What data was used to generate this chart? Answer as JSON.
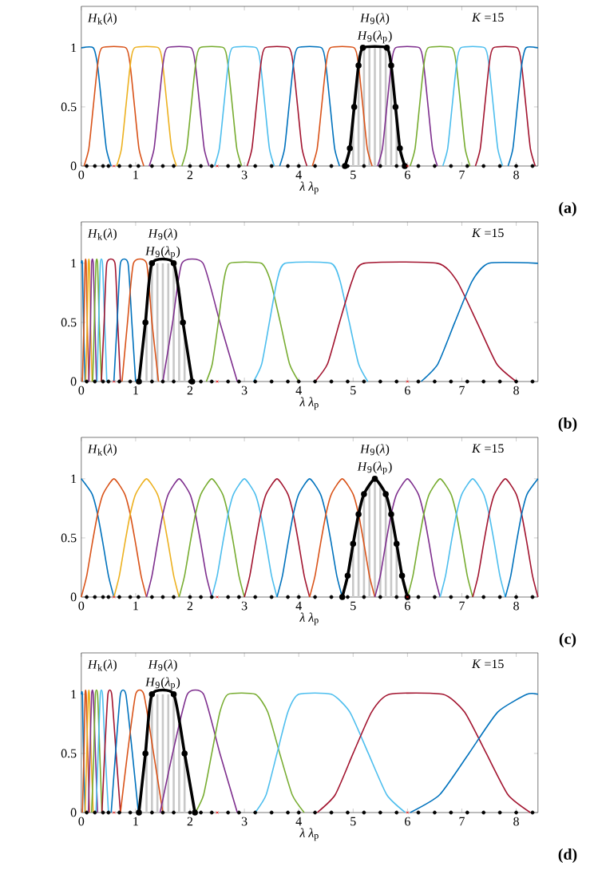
{
  "chart_data": [
    {
      "type": "line",
      "xlabel": "*λ*   *λ*$_{p}$",
      "xlim": [
        0,
        8.4
      ],
      "ylim": [
        0,
        1.35
      ],
      "xticks": [
        0,
        1,
        2,
        3,
        4,
        5,
        6,
        7,
        8
      ],
      "yticks": [
        0,
        0.5,
        1
      ],
      "annotations": [
        "*H*$_{k}$(*λ*)",
        "*H*$_{9}$(*λ*)",
        "*H*$_{9}$(*λ*$_{p}$)",
        "*K* =15",
        "(a)"
      ],
      "series": [
        {
          "type": "bar",
          "color": "#c8c8c8",
          "x": [
            5.0,
            5.1,
            5.2,
            5.3,
            5.4,
            5.5,
            5.6,
            5.7,
            5.8
          ],
          "values": [
            0.4,
            0.85,
            1,
            1,
            1,
            1,
            1,
            0.85,
            0.4
          ]
        },
        {
          "color": "#0072bd",
          "x": [
            0,
            0.22,
            0.3,
            0.38,
            0.46,
            0.55
          ],
          "values": [
            1,
            1,
            0.85,
            0.5,
            0.15,
            0
          ]
        },
        {
          "color": "#d95319",
          "x": [
            0.05,
            0.14,
            0.22,
            0.3,
            0.38,
            0.82,
            0.9,
            0.98,
            1.06,
            1.15
          ],
          "values": [
            0,
            0.15,
            0.5,
            0.85,
            1,
            1,
            0.85,
            0.5,
            0.15,
            0
          ]
        },
        {
          "color": "#edb120",
          "x": [
            0.65,
            0.74,
            0.82,
            0.9,
            0.98,
            1.42,
            1.5,
            1.58,
            1.66,
            1.75
          ],
          "values": [
            0,
            0.15,
            0.5,
            0.85,
            1,
            1,
            0.85,
            0.5,
            0.15,
            0
          ]
        },
        {
          "color": "#7e2f8e",
          "x": [
            1.25,
            1.34,
            1.42,
            1.5,
            1.58,
            2.02,
            2.1,
            2.18,
            2.26,
            2.35
          ],
          "values": [
            0,
            0.15,
            0.5,
            0.85,
            1,
            1,
            0.85,
            0.5,
            0.15,
            0
          ]
        },
        {
          "color": "#77ac30",
          "x": [
            1.85,
            1.94,
            2.02,
            2.1,
            2.18,
            2.62,
            2.7,
            2.78,
            2.86,
            2.95
          ],
          "values": [
            0,
            0.15,
            0.5,
            0.85,
            1,
            1,
            0.85,
            0.5,
            0.15,
            0
          ]
        },
        {
          "color": "#4dbeee",
          "x": [
            2.45,
            2.54,
            2.62,
            2.7,
            2.78,
            3.22,
            3.3,
            3.38,
            3.46,
            3.55
          ],
          "values": [
            0,
            0.15,
            0.5,
            0.85,
            1,
            1,
            0.85,
            0.5,
            0.15,
            0
          ]
        },
        {
          "color": "#a2142f",
          "x": [
            3.05,
            3.14,
            3.22,
            3.3,
            3.38,
            3.82,
            3.9,
            3.98,
            4.06,
            4.15
          ],
          "values": [
            0,
            0.15,
            0.5,
            0.85,
            1,
            1,
            0.85,
            0.5,
            0.15,
            0
          ]
        },
        {
          "color": "#0072bd",
          "x": [
            3.65,
            3.74,
            3.82,
            3.9,
            3.98,
            4.42,
            4.5,
            4.58,
            4.66,
            4.75
          ],
          "values": [
            0,
            0.15,
            0.5,
            0.85,
            1,
            1,
            0.85,
            0.5,
            0.15,
            0
          ]
        },
        {
          "color": "#d95319",
          "x": [
            4.25,
            4.34,
            4.42,
            4.5,
            4.58,
            5.02,
            5.1,
            5.18,
            5.26,
            5.35
          ],
          "values": [
            0,
            0.15,
            0.5,
            0.85,
            1,
            1,
            0.85,
            0.5,
            0.15,
            0
          ]
        },
        {
          "color": "#7e2f8e",
          "x": [
            5.45,
            5.54,
            5.62,
            5.7,
            5.78,
            6.22,
            6.3,
            6.38,
            6.46,
            6.55
          ],
          "values": [
            0,
            0.15,
            0.5,
            0.85,
            1,
            1,
            0.85,
            0.5,
            0.15,
            0
          ]
        },
        {
          "color": "#77ac30",
          "x": [
            6.05,
            6.14,
            6.22,
            6.3,
            6.38,
            6.82,
            6.9,
            6.98,
            7.06,
            7.15
          ],
          "values": [
            0,
            0.15,
            0.5,
            0.85,
            1,
            1,
            0.85,
            0.5,
            0.15,
            0
          ]
        },
        {
          "color": "#4dbeee",
          "x": [
            6.65,
            6.74,
            6.82,
            6.9,
            6.98,
            7.42,
            7.5,
            7.58,
            7.66,
            7.75
          ],
          "values": [
            0,
            0.15,
            0.5,
            0.85,
            1,
            1,
            0.85,
            0.5,
            0.15,
            0
          ]
        },
        {
          "color": "#a2142f",
          "x": [
            7.25,
            7.34,
            7.42,
            7.5,
            7.58,
            8.02,
            8.1,
            8.18,
            8.26,
            8.35
          ],
          "values": [
            0,
            0.15,
            0.5,
            0.85,
            1,
            1,
            0.85,
            0.5,
            0.15,
            0
          ]
        },
        {
          "color": "#0072bd",
          "x": [
            7.85,
            7.94,
            8.02,
            8.1,
            8.18,
            8.4
          ],
          "values": [
            0,
            0.15,
            0.5,
            0.85,
            1,
            1
          ]
        },
        {
          "color": "#000000",
          "marker": "circle",
          "x": [
            4.85,
            4.94,
            5.02,
            5.1,
            5.18,
            5.62,
            5.7,
            5.78,
            5.86,
            5.95
          ],
          "values": [
            0,
            0.15,
            0.5,
            0.85,
            1,
            1,
            0.85,
            0.5,
            0.15,
            0
          ]
        },
        {
          "type": "scatter",
          "color": "#000000",
          "marker": "circle",
          "x": [
            0.1,
            0.25,
            0.4,
            0.5,
            0.7,
            0.9,
            1.05,
            1.3,
            1.5,
            1.7,
            2.0,
            2.2,
            2.4,
            2.7,
            2.9,
            3.2,
            3.5,
            3.8,
            4.0,
            4.3,
            4.6,
            4.9,
            5.2,
            5.5,
            5.8,
            6.2,
            6.5,
            6.8,
            7.1,
            7.4,
            7.7,
            8.0,
            8.3
          ],
          "values": [
            0,
            0,
            0,
            0,
            0,
            0,
            0,
            0,
            0,
            0,
            0,
            0,
            0,
            0,
            0,
            0,
            0,
            0,
            0,
            0,
            0,
            0,
            0,
            0,
            0,
            0,
            0,
            0,
            0,
            0,
            0,
            0,
            0
          ]
        },
        {
          "type": "scatter",
          "color": "#ff0000",
          "marker": "cross",
          "x": [
            0.6,
            2.5,
            6.0
          ],
          "values": [
            0,
            0,
            0
          ]
        }
      ]
    },
    {
      "type": "line",
      "xlabel": "*λ*   *λ*$_{p}$",
      "xlim": [
        0,
        8.4
      ],
      "ylim": [
        0,
        1.35
      ],
      "xticks": [
        0,
        1,
        2,
        3,
        4,
        5,
        6,
        7,
        8
      ],
      "yticks": [
        0,
        0.5,
        1
      ],
      "annotations": [
        "*H*$_{k}$(*λ*)",
        "*H*$_{9}$(*λ*)",
        "*H*$_{9}$(*λ*$_{p}$)",
        "*K* =15",
        "(b)"
      ],
      "series": [
        {
          "type": "bar",
          "color": "#c8c8c8",
          "x": [
            1.2,
            1.3,
            1.4,
            1.5,
            1.6,
            1.7,
            1.8,
            1.9
          ],
          "values": [
            0.6,
            1,
            1,
            1,
            1,
            1,
            0.8,
            0.4
          ]
        },
        {
          "color": "#0072bd",
          "x": [
            0,
            0.02,
            0.04,
            0.07
          ],
          "values": [
            1,
            1,
            0.5,
            0
          ]
        },
        {
          "color": "#d95319",
          "x": [
            0.02,
            0.05,
            0.07,
            0.09,
            0.11,
            0.14
          ],
          "values": [
            0,
            0.5,
            1,
            1,
            0.5,
            0
          ]
        },
        {
          "color": "#edb120",
          "x": [
            0.08,
            0.11,
            0.13,
            0.15,
            0.17,
            0.2
          ],
          "values": [
            0,
            0.5,
            1,
            1,
            0.5,
            0
          ]
        },
        {
          "color": "#7e2f8e",
          "x": [
            0.14,
            0.17,
            0.19,
            0.22,
            0.25,
            0.28
          ],
          "values": [
            0,
            0.5,
            1,
            1,
            0.5,
            0
          ]
        },
        {
          "color": "#77ac30",
          "x": [
            0.21,
            0.24,
            0.27,
            0.3,
            0.33,
            0.37
          ],
          "values": [
            0,
            0.5,
            1,
            1,
            0.5,
            0
          ]
        },
        {
          "color": "#4dbeee",
          "x": [
            0.29,
            0.32,
            0.35,
            0.39,
            0.43,
            0.47
          ],
          "values": [
            0,
            0.5,
            1,
            1,
            0.5,
            0
          ]
        },
        {
          "color": "#a2142f",
          "x": [
            0.37,
            0.42,
            0.47,
            0.62,
            0.67,
            0.72
          ],
          "values": [
            0,
            0.5,
            1,
            1,
            0.5,
            0
          ]
        },
        {
          "color": "#0072bd",
          "x": [
            0.6,
            0.66,
            0.72,
            0.86,
            0.93,
            1.0
          ],
          "values": [
            0,
            0.5,
            1,
            1,
            0.5,
            0
          ]
        },
        {
          "color": "#d95319",
          "x": [
            0.75,
            0.85,
            0.96,
            1.2,
            1.3,
            1.42
          ],
          "values": [
            0,
            0.5,
            1,
            1,
            0.5,
            0
          ]
        },
        {
          "color": "#7e2f8e",
          "x": [
            1.5,
            1.68,
            1.85,
            2.24,
            2.55,
            2.87
          ],
          "values": [
            0,
            0.5,
            1,
            1,
            0.5,
            0
          ]
        },
        {
          "color": "#77ac30",
          "x": [
            2.3,
            2.41,
            2.52,
            2.62,
            2.73,
            3.31,
            3.48,
            3.66,
            3.83,
            4.0
          ],
          "values": [
            0,
            0.15,
            0.5,
            0.85,
            1,
            1,
            0.85,
            0.5,
            0.15,
            0
          ]
        },
        {
          "color": "#4dbeee",
          "x": [
            3.17,
            3.32,
            3.46,
            3.6,
            3.75,
            4.59,
            4.76,
            4.93,
            5.1,
            5.27
          ],
          "values": [
            0,
            0.15,
            0.5,
            0.85,
            1,
            1,
            0.85,
            0.5,
            0.15,
            0
          ]
        },
        {
          "color": "#a2142f",
          "x": [
            4.3,
            4.53,
            4.75,
            4.98,
            5.2,
            6.55,
            6.91,
            7.28,
            7.64,
            8.0
          ],
          "values": [
            0,
            0.15,
            0.5,
            0.85,
            1,
            1,
            0.85,
            0.5,
            0.15,
            0
          ]
        },
        {
          "color": "#0072bd",
          "x": [
            6.25,
            6.56,
            6.87,
            7.19,
            7.5,
            8.4
          ],
          "values": [
            0,
            0.15,
            0.5,
            0.85,
            1,
            1
          ]
        },
        {
          "color": "#000000",
          "marker": "circle",
          "x": [
            1.06,
            1.18,
            1.3,
            1.7,
            1.87,
            2.04
          ],
          "values": [
            0,
            0.5,
            1,
            1,
            0.5,
            0
          ]
        },
        {
          "type": "scatter",
          "color": "#000000",
          "marker": "circle",
          "x": [
            0.1,
            0.25,
            0.4,
            0.5,
            0.7,
            0.9,
            1.3,
            1.5,
            1.7,
            2.0,
            2.2,
            2.4,
            2.7,
            2.9,
            3.2,
            3.5,
            3.8,
            4.0,
            4.3,
            4.6,
            4.9,
            5.2,
            5.5,
            5.8,
            6.2,
            6.5,
            6.8,
            7.1,
            7.4,
            7.7,
            8.0,
            8.3
          ],
          "values": [
            0,
            0,
            0,
            0,
            0,
            0,
            0,
            0,
            0,
            0,
            0,
            0,
            0,
            0,
            0,
            0,
            0,
            0,
            0,
            0,
            0,
            0,
            0,
            0,
            0,
            0,
            0,
            0,
            0,
            0,
            0,
            0
          ]
        },
        {
          "type": "scatter",
          "color": "#ff0000",
          "marker": "cross",
          "x": [
            0.6,
            2.5,
            6.0
          ],
          "values": [
            0,
            0,
            0
          ]
        }
      ]
    },
    {
      "type": "line",
      "xlabel": "*λ*   *λ*$_{p}$",
      "xlim": [
        0,
        8.4
      ],
      "ylim": [
        0,
        1.35
      ],
      "xticks": [
        0,
        1,
        2,
        3,
        4,
        5,
        6,
        7,
        8
      ],
      "yticks": [
        0,
        0.5,
        1
      ],
      "annotations": [
        "*H*$_{k}$(*λ*)",
        "*H*$_{9}$(*λ*)",
        "*H*$_{9}$(*λ*$_{p}$)",
        "*K* =15",
        "(c)"
      ],
      "series": [
        {
          "type": "bar",
          "color": "#c8c8c8",
          "x": [
            5.0,
            5.1,
            5.2,
            5.3,
            5.4,
            5.5,
            5.6,
            5.7,
            5.8
          ],
          "values": [
            0.45,
            0.7,
            0.87,
            0.95,
            1,
            0.95,
            0.87,
            0.7,
            0.45
          ]
        },
        {
          "color": "#0072bd",
          "x": [
            0,
            0.2,
            0.3,
            0.4,
            0.5,
            0.6
          ],
          "values": [
            1,
            0.87,
            0.7,
            0.45,
            0.18,
            0
          ]
        },
        {
          "color": "#d95319",
          "x": [
            0,
            0.1,
            0.2,
            0.3,
            0.4,
            0.6,
            0.8,
            0.9,
            1.0,
            1.1,
            1.2
          ],
          "values": [
            0,
            0.18,
            0.45,
            0.7,
            0.87,
            1,
            0.87,
            0.7,
            0.45,
            0.18,
            0
          ]
        },
        {
          "color": "#edb120",
          "x": [
            0.6,
            0.7,
            0.8,
            0.9,
            1.0,
            1.2,
            1.4,
            1.5,
            1.6,
            1.7,
            1.8
          ],
          "values": [
            0,
            0.18,
            0.45,
            0.7,
            0.87,
            1,
            0.87,
            0.7,
            0.45,
            0.18,
            0
          ]
        },
        {
          "color": "#7e2f8e",
          "x": [
            1.2,
            1.3,
            1.4,
            1.5,
            1.6,
            1.8,
            2.0,
            2.1,
            2.2,
            2.3,
            2.4
          ],
          "values": [
            0,
            0.18,
            0.45,
            0.7,
            0.87,
            1,
            0.87,
            0.7,
            0.45,
            0.18,
            0
          ]
        },
        {
          "color": "#77ac30",
          "x": [
            1.8,
            1.9,
            2.0,
            2.1,
            2.2,
            2.4,
            2.6,
            2.7,
            2.8,
            2.9,
            3.0
          ],
          "values": [
            0,
            0.18,
            0.45,
            0.7,
            0.87,
            1,
            0.87,
            0.7,
            0.45,
            0.18,
            0
          ]
        },
        {
          "color": "#4dbeee",
          "x": [
            2.4,
            2.5,
            2.6,
            2.7,
            2.8,
            3.0,
            3.2,
            3.3,
            3.4,
            3.5,
            3.6
          ],
          "values": [
            0,
            0.18,
            0.45,
            0.7,
            0.87,
            1,
            0.87,
            0.7,
            0.45,
            0.18,
            0
          ]
        },
        {
          "color": "#a2142f",
          "x": [
            3.0,
            3.1,
            3.2,
            3.3,
            3.4,
            3.6,
            3.8,
            3.9,
            4.0,
            4.1,
            4.2
          ],
          "values": [
            0,
            0.18,
            0.45,
            0.7,
            0.87,
            1,
            0.87,
            0.7,
            0.45,
            0.18,
            0
          ]
        },
        {
          "color": "#0072bd",
          "x": [
            3.6,
            3.7,
            3.8,
            3.9,
            4.0,
            4.2,
            4.4,
            4.5,
            4.6,
            4.7,
            4.8
          ],
          "values": [
            0,
            0.18,
            0.45,
            0.7,
            0.87,
            1,
            0.87,
            0.7,
            0.45,
            0.18,
            0
          ]
        },
        {
          "color": "#d95319",
          "x": [
            4.2,
            4.3,
            4.4,
            4.5,
            4.6,
            4.8,
            5.0,
            5.1,
            5.2,
            5.3,
            5.4
          ],
          "values": [
            0,
            0.18,
            0.45,
            0.7,
            0.87,
            1,
            0.87,
            0.7,
            0.45,
            0.18,
            0
          ]
        },
        {
          "color": "#7e2f8e",
          "x": [
            5.4,
            5.5,
            5.6,
            5.7,
            5.8,
            6.0,
            6.2,
            6.3,
            6.4,
            6.5,
            6.6
          ],
          "values": [
            0,
            0.18,
            0.45,
            0.7,
            0.87,
            1,
            0.87,
            0.7,
            0.45,
            0.18,
            0
          ]
        },
        {
          "color": "#77ac30",
          "x": [
            6.0,
            6.1,
            6.2,
            6.3,
            6.4,
            6.6,
            6.8,
            6.9,
            7.0,
            7.1,
            7.2
          ],
          "values": [
            0,
            0.18,
            0.45,
            0.7,
            0.87,
            1,
            0.87,
            0.7,
            0.45,
            0.18,
            0
          ]
        },
        {
          "color": "#4dbeee",
          "x": [
            6.6,
            6.7,
            6.8,
            6.9,
            7.0,
            7.2,
            7.4,
            7.5,
            7.6,
            7.7,
            7.8
          ],
          "values": [
            0,
            0.18,
            0.45,
            0.7,
            0.87,
            1,
            0.87,
            0.7,
            0.45,
            0.18,
            0
          ]
        },
        {
          "color": "#a2142f",
          "x": [
            7.2,
            7.3,
            7.4,
            7.5,
            7.6,
            7.8,
            8.0,
            8.1,
            8.2,
            8.3,
            8.4
          ],
          "values": [
            0,
            0.18,
            0.45,
            0.7,
            0.87,
            1,
            0.87,
            0.7,
            0.45,
            0.18,
            0
          ]
        },
        {
          "color": "#0072bd",
          "x": [
            7.8,
            7.9,
            8.0,
            8.1,
            8.2,
            8.4
          ],
          "values": [
            0,
            0.18,
            0.45,
            0.7,
            0.87,
            1
          ]
        },
        {
          "color": "#000000",
          "marker": "circle",
          "x": [
            4.8,
            4.9,
            5.0,
            5.1,
            5.2,
            5.4,
            5.6,
            5.7,
            5.8,
            5.9,
            6.0
          ],
          "values": [
            0,
            0.18,
            0.45,
            0.7,
            0.87,
            1,
            0.87,
            0.7,
            0.45,
            0.18,
            0
          ]
        },
        {
          "type": "scatter",
          "color": "#000000",
          "marker": "circle",
          "x": [
            0.1,
            0.25,
            0.4,
            0.5,
            0.7,
            0.9,
            1.05,
            1.3,
            1.5,
            1.7,
            2.0,
            2.2,
            2.4,
            2.7,
            2.9,
            3.2,
            3.5,
            3.8,
            4.0,
            4.3,
            4.6,
            4.9,
            5.2,
            5.5,
            5.8,
            6.2,
            6.5,
            6.8,
            7.1,
            7.4,
            7.7,
            8.0,
            8.3
          ],
          "values": [
            0,
            0,
            0,
            0,
            0,
            0,
            0,
            0,
            0,
            0,
            0,
            0,
            0,
            0,
            0,
            0,
            0,
            0,
            0,
            0,
            0,
            0,
            0,
            0,
            0,
            0,
            0,
            0,
            0,
            0,
            0,
            0,
            0
          ]
        },
        {
          "type": "scatter",
          "color": "#ff0000",
          "marker": "cross",
          "x": [
            0.6,
            2.5,
            6.0
          ],
          "values": [
            0,
            0,
            0
          ]
        }
      ]
    },
    {
      "type": "line",
      "xlabel": "*λ*   *λ*$_{p}$",
      "xlim": [
        0,
        8.4
      ],
      "ylim": [
        0,
        1.35
      ],
      "xticks": [
        0,
        1,
        2,
        3,
        4,
        5,
        6,
        7,
        8
      ],
      "yticks": [
        0,
        0.5,
        1
      ],
      "annotations": [
        "*H*$_{k}$(*λ*)",
        "*H*$_{9}$(*λ*)",
        "*H*$_{9}$(*λ*$_{p}$)",
        "*K* =15",
        "(d)"
      ],
      "series": [
        {
          "type": "bar",
          "color": "#c8c8c8",
          "x": [
            1.2,
            1.3,
            1.4,
            1.5,
            1.6,
            1.7,
            1.8,
            1.9
          ],
          "values": [
            0.6,
            1,
            1,
            1,
            1,
            1,
            0.75,
            0.5
          ]
        },
        {
          "color": "#0072bd",
          "x": [
            0,
            0.02,
            0.04,
            0.07
          ],
          "values": [
            1,
            1,
            0.5,
            0
          ]
        },
        {
          "color": "#d95319",
          "x": [
            0.02,
            0.05,
            0.07,
            0.09,
            0.12,
            0.15
          ],
          "values": [
            0,
            0.5,
            1,
            1,
            0.5,
            0
          ]
        },
        {
          "color": "#edb120",
          "x": [
            0.07,
            0.1,
            0.13,
            0.15,
            0.18,
            0.22
          ],
          "values": [
            0,
            0.5,
            1,
            1,
            0.5,
            0
          ]
        },
        {
          "color": "#7e2f8e",
          "x": [
            0.13,
            0.16,
            0.19,
            0.22,
            0.26,
            0.3
          ],
          "values": [
            0,
            0.5,
            1,
            1,
            0.5,
            0
          ]
        },
        {
          "color": "#77ac30",
          "x": [
            0.19,
            0.23,
            0.26,
            0.3,
            0.34,
            0.38
          ],
          "values": [
            0,
            0.5,
            1,
            1,
            0.5,
            0
          ]
        },
        {
          "color": "#4dbeee",
          "x": [
            0.27,
            0.31,
            0.35,
            0.39,
            0.44,
            0.5
          ],
          "values": [
            0,
            0.5,
            1,
            1,
            0.5,
            0
          ]
        },
        {
          "color": "#a2142f",
          "x": [
            0.38,
            0.43,
            0.49,
            0.56,
            0.64,
            0.72
          ],
          "values": [
            0,
            0.5,
            1,
            1,
            0.5,
            0
          ]
        },
        {
          "color": "#0072bd",
          "x": [
            0.55,
            0.63,
            0.72,
            0.82,
            0.94,
            1.05
          ],
          "values": [
            0,
            0.5,
            1,
            1,
            0.5,
            0
          ]
        },
        {
          "color": "#d95319",
          "x": [
            0.72,
            0.85,
            1.0,
            1.15,
            1.33,
            1.5
          ],
          "values": [
            0,
            0.5,
            1,
            1,
            0.5,
            0
          ]
        },
        {
          "color": "#7e2f8e",
          "x": [
            1.45,
            1.68,
            1.95,
            2.25,
            2.55,
            2.87
          ],
          "values": [
            0,
            0.5,
            1,
            1,
            0.5,
            0
          ]
        },
        {
          "color": "#77ac30",
          "x": [
            2.1,
            2.25,
            2.4,
            2.55,
            2.7,
            3.2,
            3.43,
            3.65,
            3.88,
            4.1
          ],
          "values": [
            0,
            0.15,
            0.5,
            0.85,
            1,
            1,
            0.85,
            0.5,
            0.15,
            0
          ]
        },
        {
          "color": "#4dbeee",
          "x": [
            3.2,
            3.4,
            3.6,
            3.8,
            4.0,
            4.6,
            4.94,
            5.28,
            5.62,
            5.96
          ],
          "values": [
            0,
            0.15,
            0.5,
            0.85,
            1,
            1,
            0.85,
            0.5,
            0.15,
            0
          ]
        },
        {
          "color": "#a2142f",
          "x": [
            4.34,
            4.67,
            5.0,
            5.34,
            5.67,
            6.65,
            7.05,
            7.45,
            7.85,
            8.26
          ],
          "values": [
            0,
            0.15,
            0.5,
            0.85,
            1,
            1,
            0.85,
            0.5,
            0.15,
            0
          ]
        },
        {
          "color": "#0072bd",
          "x": [
            6.05,
            6.59,
            7.13,
            7.66,
            8.2,
            8.4
          ],
          "values": [
            0,
            0.15,
            0.5,
            0.85,
            1,
            1
          ]
        },
        {
          "color": "#000000",
          "marker": "circle",
          "x": [
            1.06,
            1.18,
            1.3,
            1.7,
            1.9,
            2.09
          ],
          "values": [
            0,
            0.5,
            1,
            1,
            0.5,
            0
          ]
        },
        {
          "type": "scatter",
          "color": "#000000",
          "marker": "circle",
          "x": [
            0.1,
            0.25,
            0.4,
            0.5,
            0.7,
            0.9,
            1.05,
            1.3,
            1.5,
            1.7,
            2.0,
            2.2,
            2.4,
            2.7,
            2.9,
            3.2,
            3.5,
            3.8,
            4.0,
            4.3,
            4.6,
            4.9,
            5.2,
            5.5,
            5.8,
            6.2,
            6.5,
            6.8,
            7.1,
            7.4,
            7.7,
            8.0,
            8.3
          ],
          "values": [
            0,
            0,
            0,
            0,
            0,
            0,
            0,
            0,
            0,
            0,
            0,
            0,
            0,
            0,
            0,
            0,
            0,
            0,
            0,
            0,
            0,
            0,
            0,
            0,
            0,
            0,
            0,
            0,
            0,
            0,
            0,
            0,
            0
          ]
        },
        {
          "type": "scatter",
          "color": "#ff0000",
          "marker": "cross",
          "x": [
            0.6,
            2.5,
            6.0
          ],
          "values": [
            0,
            0,
            0
          ]
        }
      ]
    }
  ]
}
